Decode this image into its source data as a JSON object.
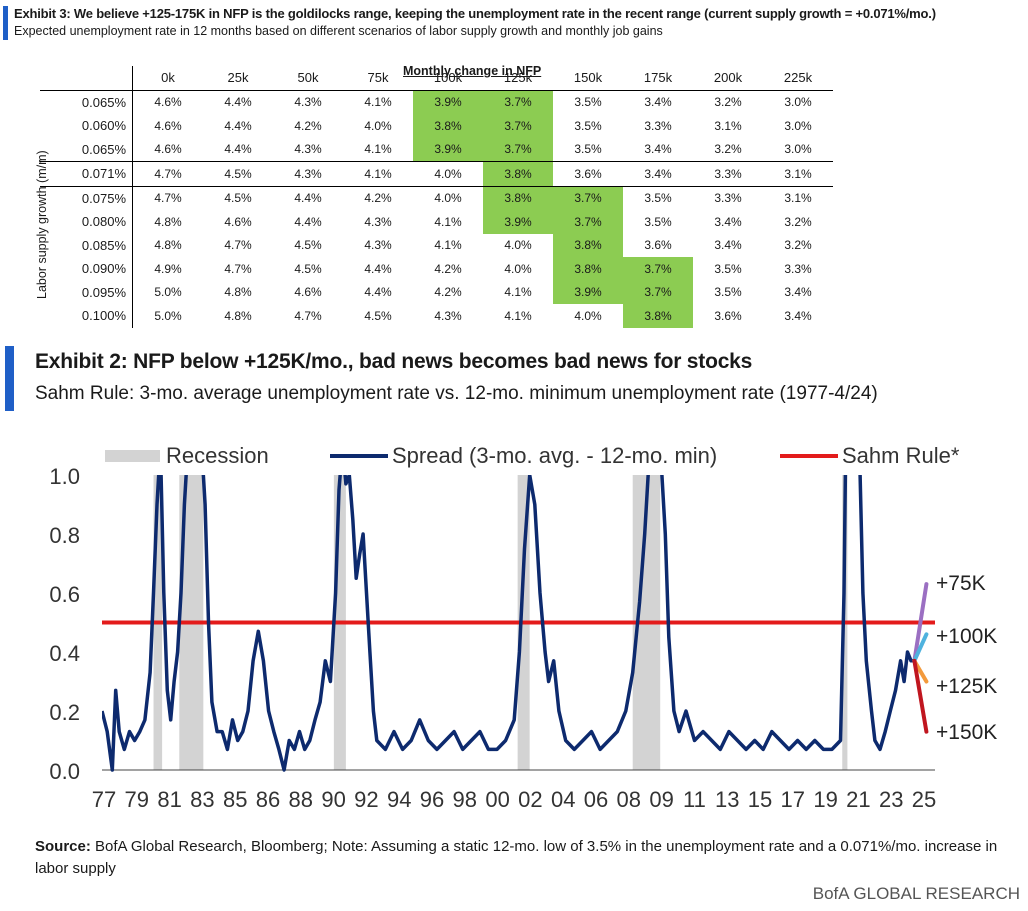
{
  "exhibit3": {
    "title": "Exhibit 3: We believe +125-175K in NFP is the goldilocks range, keeping the unemployment rate in the recent range (current supply growth = +0.071%/mo.)",
    "subtitle": "Expected unemployment rate in 12 months based on different scenarios of labor supply growth and monthly job gains",
    "column_group_label": "Monthly change in NFP",
    "row_axis_label": "Labor supply growth (m/m)",
    "columns": [
      "0k",
      "25k",
      "50k",
      "75k",
      "100k",
      "125k",
      "150k",
      "175k",
      "200k",
      "225k"
    ],
    "rows": [
      {
        "label": "0.065%",
        "values": [
          "4.6%",
          "4.4%",
          "4.3%",
          "4.1%",
          "3.9%",
          "3.7%",
          "3.5%",
          "3.4%",
          "3.2%",
          "3.0%"
        ],
        "highlight": [
          4,
          5
        ]
      },
      {
        "label": "0.060%",
        "values": [
          "4.6%",
          "4.4%",
          "4.2%",
          "4.0%",
          "3.8%",
          "3.7%",
          "3.5%",
          "3.3%",
          "3.1%",
          "3.0%"
        ],
        "highlight": [
          4,
          5
        ]
      },
      {
        "label": "0.065%",
        "values": [
          "4.6%",
          "4.4%",
          "4.3%",
          "4.1%",
          "3.9%",
          "3.7%",
          "3.5%",
          "3.4%",
          "3.2%",
          "3.0%"
        ],
        "highlight": [
          4,
          5
        ]
      },
      {
        "label": "0.071%",
        "values": [
          "4.7%",
          "4.5%",
          "4.3%",
          "4.1%",
          "4.0%",
          "3.8%",
          "3.6%",
          "3.4%",
          "3.3%",
          "3.1%"
        ],
        "highlight": [
          5
        ]
      },
      {
        "label": "0.075%",
        "values": [
          "4.7%",
          "4.5%",
          "4.4%",
          "4.2%",
          "4.0%",
          "3.8%",
          "3.7%",
          "3.5%",
          "3.3%",
          "3.1%"
        ],
        "highlight": [
          5,
          6
        ]
      },
      {
        "label": "0.080%",
        "values": [
          "4.8%",
          "4.6%",
          "4.4%",
          "4.3%",
          "4.1%",
          "3.9%",
          "3.7%",
          "3.5%",
          "3.4%",
          "3.2%"
        ],
        "highlight": [
          5,
          6
        ]
      },
      {
        "label": "0.085%",
        "values": [
          "4.8%",
          "4.7%",
          "4.5%",
          "4.3%",
          "4.1%",
          "4.0%",
          "3.8%",
          "3.6%",
          "3.4%",
          "3.2%"
        ],
        "highlight": [
          6
        ]
      },
      {
        "label": "0.090%",
        "values": [
          "4.9%",
          "4.7%",
          "4.5%",
          "4.4%",
          "4.2%",
          "4.0%",
          "3.8%",
          "3.7%",
          "3.5%",
          "3.3%"
        ],
        "highlight": [
          6,
          7
        ]
      },
      {
        "label": "0.095%",
        "values": [
          "5.0%",
          "4.8%",
          "4.6%",
          "4.4%",
          "4.2%",
          "4.1%",
          "3.9%",
          "3.7%",
          "3.5%",
          "3.4%"
        ],
        "highlight": [
          6,
          7
        ]
      },
      {
        "label": "0.100%",
        "values": [
          "5.0%",
          "4.8%",
          "4.7%",
          "4.5%",
          "4.3%",
          "4.1%",
          "4.0%",
          "3.8%",
          "3.6%",
          "3.4%"
        ],
        "highlight": [
          7
        ]
      }
    ],
    "highlight_color": "#8ccc52"
  },
  "exhibit2": {
    "title": "Exhibit 2: NFP below +125K/mo., bad news becomes bad news for stocks",
    "subtitle": "Sahm Rule: 3-mo. average unemployment rate vs. 12-mo. minimum unemployment rate (1977-4/24)"
  },
  "chart_data": {
    "type": "line",
    "ylim": [
      0,
      1.0
    ],
    "yticks": [
      "0.0",
      "0.2",
      "0.4",
      "0.6",
      "0.8",
      "1.0"
    ],
    "xticks": [
      "77",
      "79",
      "81",
      "83",
      "85",
      "86",
      "88",
      "90",
      "92",
      "94",
      "96",
      "98",
      "00",
      "02",
      "04",
      "06",
      "08",
      "09",
      "11",
      "13",
      "15",
      "17",
      "19",
      "21",
      "23",
      "25"
    ],
    "xlim": [
      1977,
      2025.5
    ],
    "legend": {
      "recession": "Recession",
      "spread": "Spread (3-mo. avg. - 12-mo. min)",
      "sahm": "Sahm Rule*"
    },
    "colors": {
      "spread": "#0d2a6e",
      "sahm": "#e31b1b",
      "recession": "#d3d3d3",
      "plus75": "#9b6fc2",
      "plus100": "#4fb2de",
      "plus125": "#f39a3c",
      "plus150": "#c0161f"
    },
    "sahm_threshold": 0.5,
    "recessions": [
      [
        1980.0,
        1980.5
      ],
      [
        1981.5,
        1982.9
      ],
      [
        1990.5,
        1991.2
      ],
      [
        2001.2,
        2001.9
      ],
      [
        2007.9,
        2009.5
      ],
      [
        2020.1,
        2020.4
      ]
    ],
    "spread_series": [
      [
        1977.0,
        0.2
      ],
      [
        1977.3,
        0.13
      ],
      [
        1977.6,
        0.0
      ],
      [
        1977.8,
        0.27
      ],
      [
        1978.0,
        0.13
      ],
      [
        1978.3,
        0.07
      ],
      [
        1978.6,
        0.13
      ],
      [
        1978.9,
        0.1
      ],
      [
        1979.2,
        0.13
      ],
      [
        1979.5,
        0.17
      ],
      [
        1979.8,
        0.33
      ],
      [
        1980.0,
        0.6
      ],
      [
        1980.2,
        0.9
      ],
      [
        1980.4,
        1.1
      ],
      [
        1980.6,
        0.6
      ],
      [
        1980.8,
        0.27
      ],
      [
        1981.0,
        0.17
      ],
      [
        1981.2,
        0.3
      ],
      [
        1981.4,
        0.4
      ],
      [
        1981.6,
        0.6
      ],
      [
        1981.8,
        0.9
      ],
      [
        1982.0,
        1.1
      ],
      [
        1982.2,
        1.1
      ],
      [
        1982.5,
        1.1
      ],
      [
        1982.8,
        1.1
      ],
      [
        1983.0,
        0.9
      ],
      [
        1983.2,
        0.5
      ],
      [
        1983.4,
        0.23
      ],
      [
        1983.7,
        0.13
      ],
      [
        1984.0,
        0.13
      ],
      [
        1984.3,
        0.07
      ],
      [
        1984.6,
        0.17
      ],
      [
        1984.9,
        0.1
      ],
      [
        1985.2,
        0.13
      ],
      [
        1985.5,
        0.2
      ],
      [
        1985.8,
        0.37
      ],
      [
        1986.1,
        0.47
      ],
      [
        1986.4,
        0.37
      ],
      [
        1986.7,
        0.2
      ],
      [
        1987.0,
        0.13
      ],
      [
        1987.3,
        0.07
      ],
      [
        1987.6,
        0.0
      ],
      [
        1987.9,
        0.1
      ],
      [
        1988.2,
        0.07
      ],
      [
        1988.5,
        0.13
      ],
      [
        1988.8,
        0.07
      ],
      [
        1989.1,
        0.1
      ],
      [
        1989.4,
        0.17
      ],
      [
        1989.7,
        0.23
      ],
      [
        1990.0,
        0.37
      ],
      [
        1990.3,
        0.3
      ],
      [
        1990.6,
        0.6
      ],
      [
        1990.8,
        0.95
      ],
      [
        1991.0,
        1.1
      ],
      [
        1991.2,
        0.97
      ],
      [
        1991.4,
        1.0
      ],
      [
        1991.6,
        0.85
      ],
      [
        1991.8,
        0.65
      ],
      [
        1992.0,
        0.73
      ],
      [
        1992.2,
        0.8
      ],
      [
        1992.4,
        0.6
      ],
      [
        1992.6,
        0.4
      ],
      [
        1992.8,
        0.2
      ],
      [
        1993.0,
        0.1
      ],
      [
        1993.5,
        0.07
      ],
      [
        1994.0,
        0.13
      ],
      [
        1994.5,
        0.07
      ],
      [
        1995.0,
        0.1
      ],
      [
        1995.5,
        0.17
      ],
      [
        1996.0,
        0.1
      ],
      [
        1996.5,
        0.07
      ],
      [
        1997.0,
        0.1
      ],
      [
        1997.5,
        0.13
      ],
      [
        1998.0,
        0.07
      ],
      [
        1998.5,
        0.1
      ],
      [
        1999.0,
        0.13
      ],
      [
        1999.5,
        0.07
      ],
      [
        2000.0,
        0.07
      ],
      [
        2000.5,
        0.1
      ],
      [
        2001.0,
        0.17
      ],
      [
        2001.3,
        0.4
      ],
      [
        2001.6,
        0.75
      ],
      [
        2001.9,
        1.0
      ],
      [
        2002.2,
        0.9
      ],
      [
        2002.5,
        0.6
      ],
      [
        2002.8,
        0.4
      ],
      [
        2003.0,
        0.3
      ],
      [
        2003.3,
        0.37
      ],
      [
        2003.6,
        0.2
      ],
      [
        2004.0,
        0.1
      ],
      [
        2004.5,
        0.07
      ],
      [
        2005.0,
        0.1
      ],
      [
        2005.5,
        0.13
      ],
      [
        2006.0,
        0.07
      ],
      [
        2006.5,
        0.1
      ],
      [
        2007.0,
        0.13
      ],
      [
        2007.5,
        0.2
      ],
      [
        2007.9,
        0.33
      ],
      [
        2008.3,
        0.57
      ],
      [
        2008.6,
        0.8
      ],
      [
        2008.9,
        1.1
      ],
      [
        2009.2,
        1.1
      ],
      [
        2009.5,
        1.1
      ],
      [
        2009.8,
        0.8
      ],
      [
        2010.0,
        0.45
      ],
      [
        2010.3,
        0.2
      ],
      [
        2010.6,
        0.13
      ],
      [
        2011.0,
        0.2
      ],
      [
        2011.5,
        0.1
      ],
      [
        2012.0,
        0.13
      ],
      [
        2012.5,
        0.1
      ],
      [
        2013.0,
        0.07
      ],
      [
        2013.5,
        0.13
      ],
      [
        2014.0,
        0.1
      ],
      [
        2014.5,
        0.07
      ],
      [
        2015.0,
        0.1
      ],
      [
        2015.5,
        0.07
      ],
      [
        2016.0,
        0.13
      ],
      [
        2016.5,
        0.1
      ],
      [
        2017.0,
        0.07
      ],
      [
        2017.5,
        0.1
      ],
      [
        2018.0,
        0.07
      ],
      [
        2018.5,
        0.1
      ],
      [
        2019.0,
        0.07
      ],
      [
        2019.5,
        0.07
      ],
      [
        2020.0,
        0.1
      ],
      [
        2020.2,
        0.6
      ],
      [
        2020.3,
        1.1
      ],
      [
        2020.6,
        1.1
      ],
      [
        2020.9,
        1.1
      ],
      [
        2021.1,
        1.1
      ],
      [
        2021.3,
        0.6
      ],
      [
        2021.5,
        0.37
      ],
      [
        2021.8,
        0.2
      ],
      [
        2022.0,
        0.1
      ],
      [
        2022.3,
        0.07
      ],
      [
        2022.6,
        0.13
      ],
      [
        2022.9,
        0.2
      ],
      [
        2023.2,
        0.27
      ],
      [
        2023.5,
        0.37
      ],
      [
        2023.7,
        0.3
      ],
      [
        2023.9,
        0.4
      ],
      [
        2024.1,
        0.37
      ],
      [
        2024.3,
        0.37
      ]
    ],
    "scenarios": [
      {
        "label": "+75K",
        "end": [
          2025.0,
          0.63
        ]
      },
      {
        "label": "+100K",
        "end": [
          2025.0,
          0.46
        ]
      },
      {
        "label": "+125K",
        "end": [
          2025.0,
          0.3
        ]
      },
      {
        "label": "+150K",
        "end": [
          2025.0,
          0.13
        ]
      }
    ]
  },
  "source": {
    "label": "Source:",
    "text": " BofA Global Research, Bloomberg; Note: Assuming a static 12-mo. low of 3.5% in the unemployment rate and a 0.071%/mo. increase in labor supply"
  },
  "brand": "BofA GLOBAL RESEARCH"
}
